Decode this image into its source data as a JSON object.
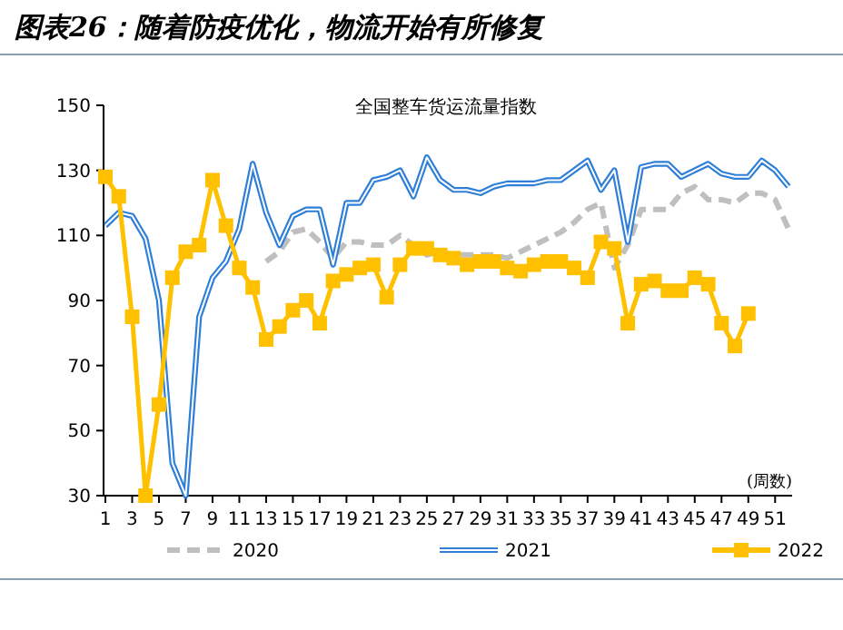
{
  "chart_data": {
    "type": "line",
    "title": "图表26：随着防疫优化，物流开始有所修复",
    "subtitle": "全国整车货运流量指数",
    "xlabel": "(周数)",
    "xlim": [
      1,
      52
    ],
    "xticks": [
      1,
      3,
      5,
      7,
      9,
      11,
      13,
      15,
      17,
      19,
      21,
      23,
      25,
      27,
      29,
      31,
      33,
      35,
      37,
      39,
      41,
      43,
      45,
      47,
      49,
      51
    ],
    "ylim": [
      30,
      150
    ],
    "yticks": [
      30,
      50,
      70,
      90,
      110,
      130,
      150
    ],
    "grid": false,
    "legend": "bottom",
    "series": [
      {
        "name": "2020",
        "color": "#bfbfbf",
        "line_style": "dashed",
        "marker": "none",
        "x": [
          13,
          14,
          15,
          16,
          17,
          18,
          19,
          20,
          21,
          22,
          23,
          24,
          25,
          26,
          27,
          28,
          29,
          30,
          31,
          32,
          33,
          34,
          35,
          36,
          37,
          38,
          39,
          40,
          41,
          42,
          43,
          44,
          45,
          46,
          47,
          48,
          49,
          50,
          51,
          52
        ],
        "values": [
          102,
          105,
          111,
          112,
          108,
          103,
          108,
          108,
          107,
          107,
          110,
          107,
          104,
          105,
          104,
          104,
          104,
          104,
          103,
          105,
          107,
          109,
          111,
          114,
          118,
          120,
          100,
          107,
          118,
          118,
          118,
          123,
          125,
          121,
          121,
          120,
          123,
          123,
          121,
          112
        ]
      },
      {
        "name": "2021",
        "color": "#2f7fd8",
        "line_style": "solid",
        "marker": "none",
        "x": [
          1,
          2,
          3,
          4,
          5,
          6,
          7,
          8,
          9,
          10,
          11,
          12,
          13,
          14,
          15,
          16,
          17,
          18,
          19,
          20,
          21,
          22,
          23,
          24,
          25,
          26,
          27,
          28,
          29,
          30,
          31,
          32,
          33,
          34,
          35,
          36,
          37,
          38,
          39,
          40,
          41,
          42,
          43,
          44,
          45,
          46,
          47,
          48,
          49,
          50,
          51,
          52
        ],
        "values": [
          113,
          117,
          116,
          109,
          90,
          40,
          30,
          85,
          97,
          102,
          112,
          132,
          117,
          107,
          116,
          118,
          118,
          101,
          120,
          120,
          127,
          128,
          130,
          122,
          134,
          127,
          124,
          124,
          123,
          125,
          126,
          126,
          126,
          127,
          127,
          130,
          133,
          124,
          130,
          108,
          131,
          132,
          132,
          128,
          130,
          132,
          129,
          128,
          128,
          133,
          130,
          125
        ]
      },
      {
        "name": "2022",
        "color": "#ffc000",
        "line_style": "solid",
        "marker": "square",
        "x": [
          1,
          2,
          3,
          4,
          5,
          6,
          7,
          8,
          9,
          10,
          11,
          12,
          13,
          14,
          15,
          16,
          17,
          18,
          19,
          20,
          21,
          22,
          23,
          24,
          25,
          26,
          27,
          28,
          29,
          30,
          31,
          32,
          33,
          34,
          35,
          36,
          37,
          38,
          39,
          40,
          41,
          42,
          43,
          44,
          45,
          46,
          47,
          48,
          49
        ],
        "values": [
          128,
          122,
          85,
          30,
          58,
          97,
          105,
          107,
          127,
          113,
          100,
          94,
          78,
          82,
          87,
          90,
          83,
          96,
          98,
          100,
          101,
          91,
          101,
          106,
          106,
          104,
          103,
          101,
          102,
          102,
          100,
          99,
          101,
          102,
          102,
          100,
          97,
          108,
          106,
          83,
          95,
          96,
          93,
          93,
          97,
          95,
          83,
          76,
          86
        ]
      }
    ]
  }
}
